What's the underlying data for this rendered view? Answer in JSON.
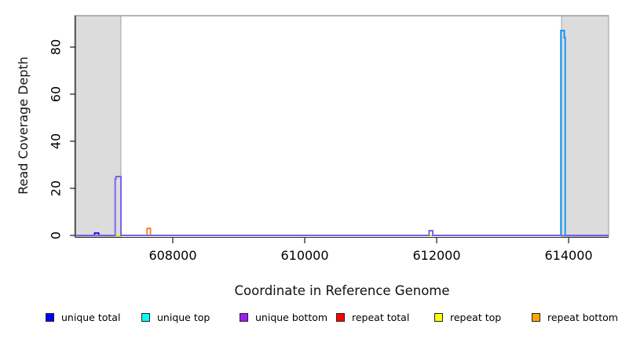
{
  "figure": {
    "y_axis_label": "Read Coverage Depth",
    "x_axis_label": "Coordinate in Reference Genome"
  },
  "chart_data": {
    "type": "line",
    "title": "",
    "xlabel": "Coordinate in Reference Genome",
    "ylabel": "Read Coverage Depth",
    "xlim": [
      606524,
      614607
    ],
    "ylim": [
      0,
      93
    ],
    "x_tick_values": [
      608000,
      610000,
      612000,
      614000
    ],
    "x_tick_labels": [
      "608000",
      "610000",
      "612000",
      "614000"
    ],
    "y_tick_values": [
      0,
      20,
      40,
      60,
      80
    ],
    "y_tick_labels": [
      "0",
      "20",
      "40",
      "60",
      "80"
    ],
    "grid": false,
    "legend_position": "bottom",
    "shaded_regions": [
      {
        "x0": 606524,
        "x1": 607214,
        "fill": "#dcdcdc",
        "stroke": "#a3a3a3"
      },
      {
        "x0": 613905,
        "x1": 614607,
        "fill": "#dcdcdc",
        "stroke": "#a3a3a3"
      }
    ],
    "series": [
      {
        "name": "repeat total",
        "line_color": "#ff0000",
        "opacity": 1,
        "points": [
          [
            606524,
            0
          ],
          [
            614607,
            0
          ]
        ]
      },
      {
        "name": "repeat top",
        "line_color": "#ffff00",
        "opacity": 1,
        "points": [
          [
            606524,
            0
          ],
          [
            614607,
            0
          ]
        ]
      },
      {
        "name": "unique total",
        "line_color": "#0000ff",
        "opacity": 1,
        "points": [
          [
            606524,
            0
          ],
          [
            606815,
            0
          ],
          [
            606815,
            1
          ],
          [
            606877,
            1
          ],
          [
            606877,
            0
          ],
          [
            607127,
            0
          ],
          [
            607127,
            24
          ],
          [
            607139,
            24
          ],
          [
            607139,
            25
          ],
          [
            607216,
            25
          ],
          [
            607216,
            0
          ],
          [
            611884,
            0
          ],
          [
            611884,
            2
          ],
          [
            611942,
            2
          ],
          [
            611942,
            0
          ],
          [
            613883,
            0
          ],
          [
            613883,
            87
          ],
          [
            613934,
            87
          ],
          [
            613934,
            84
          ],
          [
            613949,
            84
          ],
          [
            613949,
            0
          ],
          [
            614607,
            0
          ]
        ]
      },
      {
        "name": "unique top",
        "line_color": "#00ffff",
        "opacity": 0.6,
        "points": [
          [
            613883,
            0
          ],
          [
            613883,
            87
          ],
          [
            613934,
            87
          ],
          [
            613934,
            84
          ],
          [
            613949,
            84
          ],
          [
            613949,
            0
          ]
        ]
      },
      {
        "name": "repeat bottom",
        "line_color": "#f57900",
        "opacity": 1,
        "points": [
          [
            607611,
            0
          ],
          [
            607611,
            3
          ],
          [
            607662,
            3
          ],
          [
            607662,
            0
          ]
        ]
      },
      {
        "name": "unique bottom",
        "line_color": "#7b68ee",
        "opacity": 1,
        "points": [
          [
            606524,
            0
          ],
          [
            607127,
            0
          ],
          [
            607127,
            24
          ],
          [
            607139,
            24
          ],
          [
            607139,
            25
          ],
          [
            607216,
            25
          ],
          [
            607216,
            0
          ],
          [
            611884,
            0
          ],
          [
            611884,
            2
          ],
          [
            611942,
            2
          ],
          [
            611942,
            0
          ],
          [
            614607,
            0
          ]
        ]
      }
    ],
    "legend": [
      {
        "label": "unique total",
        "color": "#0000ff"
      },
      {
        "label": "unique top",
        "color": "#00ffff"
      },
      {
        "label": "unique bottom",
        "color": "#a020f0"
      },
      {
        "label": "repeat total",
        "color": "#ff0000"
      },
      {
        "label": "repeat top",
        "color": "#ffff00"
      },
      {
        "label": "repeat bottom",
        "color": "#ffa500"
      }
    ]
  },
  "layout_colors": {
    "frame": "#9c9c9c",
    "axis": "#2b2b2b",
    "tick_text": "#000000"
  }
}
